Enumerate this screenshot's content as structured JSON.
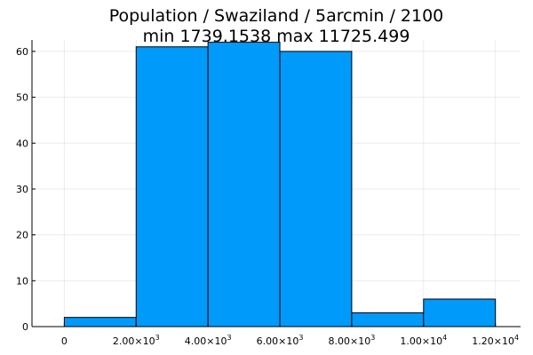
{
  "chart_data": {
    "type": "bar",
    "title_lines": [
      "Population / Swaziland / 5arcmin / 2100",
      "min 1739.1538  max 11725.499"
    ],
    "bins": [
      {
        "start": 0,
        "end": 2000,
        "count": 2
      },
      {
        "start": 2000,
        "end": 4000,
        "count": 61
      },
      {
        "start": 4000,
        "end": 6000,
        "count": 62
      },
      {
        "start": 6000,
        "end": 8000,
        "count": 60
      },
      {
        "start": 8000,
        "end": 10000,
        "count": 3
      },
      {
        "start": 10000,
        "end": 12000,
        "count": 6
      }
    ],
    "xlim": [
      -900,
      12700
    ],
    "ylim": [
      0,
      62.5
    ],
    "x_ticks": [
      {
        "value": 0,
        "base": "0",
        "exp": ""
      },
      {
        "value": 2000,
        "base": "2.00×10",
        "exp": "3"
      },
      {
        "value": 4000,
        "base": "4.00×10",
        "exp": "3"
      },
      {
        "value": 6000,
        "base": "6.00×10",
        "exp": "3"
      },
      {
        "value": 8000,
        "base": "8.00×10",
        "exp": "3"
      },
      {
        "value": 10000,
        "base": "1.00×10",
        "exp": "4"
      },
      {
        "value": 12000,
        "base": "1.20×10",
        "exp": "4"
      }
    ],
    "y_ticks": [
      {
        "value": 0,
        "label": "0"
      },
      {
        "value": 10,
        "label": "10"
      },
      {
        "value": 20,
        "label": "20"
      },
      {
        "value": 30,
        "label": "30"
      },
      {
        "value": 40,
        "label": "40"
      },
      {
        "value": 50,
        "label": "50"
      },
      {
        "value": 60,
        "label": "60"
      }
    ],
    "bar_color": "#009AFA",
    "grid": true,
    "legend": "none"
  }
}
